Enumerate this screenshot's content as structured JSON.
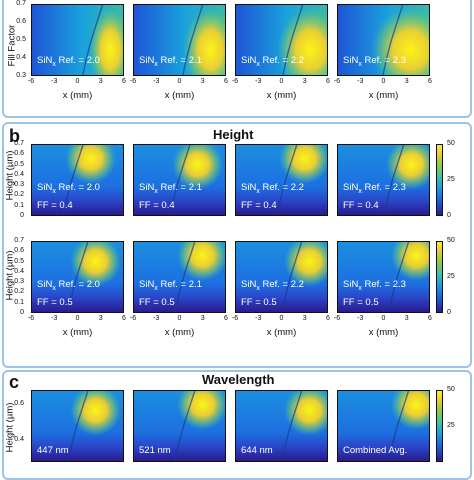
{
  "panels": {
    "a": {
      "letter": "",
      "ylabel": "Fill Factor",
      "xlabel": "x (mm)"
    },
    "b": {
      "letter": "b",
      "title": "Height",
      "ylabel": "Height (µm)",
      "xlabel": "x (mm)"
    },
    "c": {
      "letter": "c",
      "title": "Wavelength",
      "ylabel": "Height (µm)"
    }
  },
  "chart_data": [
    {
      "type": "heatmap",
      "panel": "a",
      "title": "",
      "xlabel": "x (mm)",
      "ylabel": "Fill Factor",
      "xlim": [
        -6,
        6
      ],
      "ylim": [
        0.3,
        0.7
      ],
      "xticks": [
        "-6",
        "-3",
        "0",
        "3",
        "6"
      ],
      "yticks": [
        "0.7",
        "0.6",
        "0.5",
        "0.4",
        "0.3"
      ],
      "colormap": "parula",
      "maps": [
        {
          "label_main": "SiN",
          "label_sub": "x",
          "label_rest": " Ref. = 2.0"
        },
        {
          "label_main": "SiN",
          "label_sub": "x",
          "label_rest": " Ref. = 2.1"
        },
        {
          "label_main": "SiN",
          "label_sub": "x",
          "label_rest": " Ref. = 2.2"
        },
        {
          "label_main": "SiN",
          "label_sub": "x",
          "label_rest": " Ref. = 2.3"
        }
      ]
    },
    {
      "type": "heatmap",
      "panel": "b",
      "title": "Height",
      "xlabel": "x (mm)",
      "ylabel": "Height (µm)",
      "xlim": [
        -6,
        6
      ],
      "ylim": [
        0,
        0.7
      ],
      "xticks": [
        "-6",
        "-3",
        "0",
        "3",
        "6"
      ],
      "yticks": [
        "0.7",
        "0.6",
        "0.5",
        "0.4",
        "0.3",
        "0.2",
        "0.1",
        "0"
      ],
      "colorbar": {
        "min": 0,
        "max": 50,
        "ticks": [
          "50",
          "25",
          "0"
        ]
      },
      "colormap": "parula",
      "rows": [
        {
          "ff_label": "FF = 0.4",
          "maps": [
            {
              "label_main": "SiN",
              "label_sub": "x",
              "label_rest": " Ref. = 2.0"
            },
            {
              "label_main": "SiN",
              "label_sub": "x",
              "label_rest": " Ref. = 2.1"
            },
            {
              "label_main": "SiN",
              "label_sub": "x",
              "label_rest": " Ref. = 2.2"
            },
            {
              "label_main": "SiN",
              "label_sub": "x",
              "label_rest": " Ref. = 2.3"
            }
          ]
        },
        {
          "ff_label": "FF = 0.5",
          "maps": [
            {
              "label_main": "SiN",
              "label_sub": "x",
              "label_rest": " Ref. = 2.0"
            },
            {
              "label_main": "SiN",
              "label_sub": "x",
              "label_rest": " Ref. = 2.1"
            },
            {
              "label_main": "SiN",
              "label_sub": "x",
              "label_rest": " Ref. = 2.2"
            },
            {
              "label_main": "SiN",
              "label_sub": "x",
              "label_rest": " Ref. = 2.3"
            }
          ]
        }
      ]
    },
    {
      "type": "heatmap",
      "panel": "c",
      "title": "Wavelength",
      "ylabel": "Height (µm)",
      "ylim": [
        0.4,
        0.6
      ],
      "yticks": [
        "0.6",
        "0.4"
      ],
      "colorbar": {
        "min": 0,
        "max": 50,
        "ticks": [
          "50",
          "25"
        ]
      },
      "colormap": "parula",
      "maps": [
        {
          "label": "447 nm"
        },
        {
          "label": "521 nm"
        },
        {
          "label": "644 nm"
        },
        {
          "label": "Combined Avg."
        }
      ]
    }
  ],
  "colors": {
    "panel_border": "#9dc3e6",
    "low": "#2a1a8c",
    "mid": "#1aa1dd",
    "high": "#fbf516"
  }
}
